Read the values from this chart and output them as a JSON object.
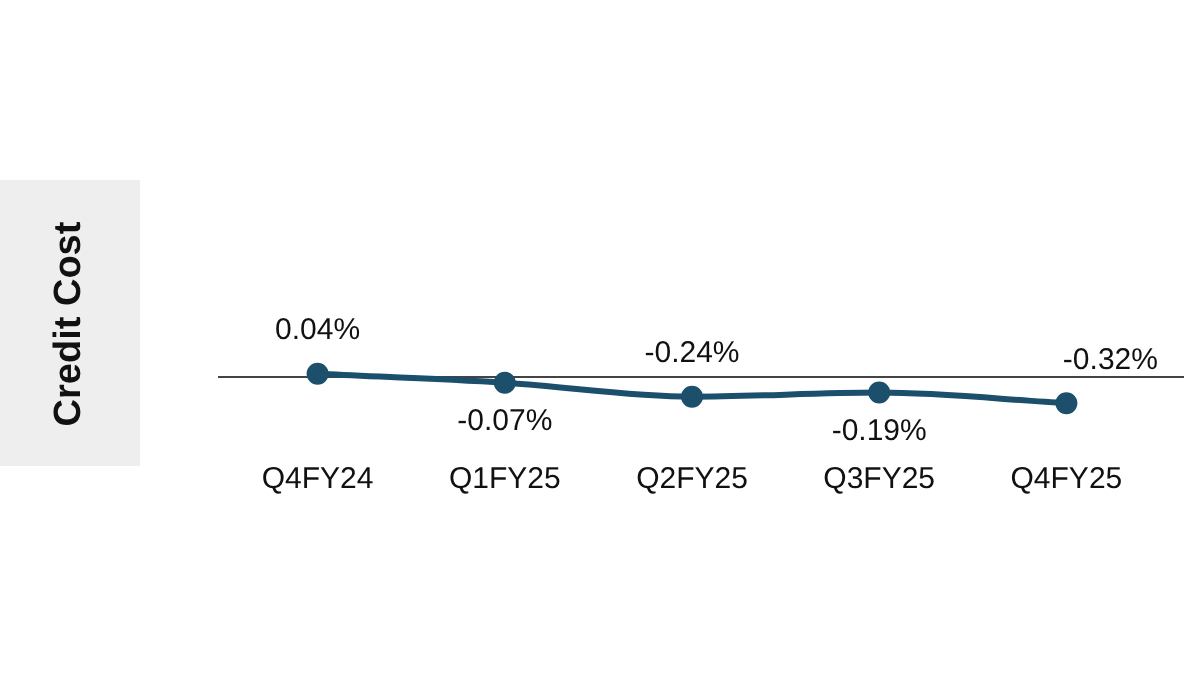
{
  "chart_data": {
    "type": "line",
    "ylabel": "Credit Cost",
    "categories": [
      "Q4FY24",
      "Q1FY25",
      "Q2FY25",
      "Q3FY25",
      "Q4FY25"
    ],
    "series": [
      {
        "color": "#1b4f6b",
        "values": [
          0.04,
          -0.07,
          -0.24,
          -0.19,
          -0.32
        ],
        "value_labels": [
          "0.04%",
          "-0.07%",
          "-0.24%",
          "-0.19%",
          "-0.32%"
        ]
      }
    ],
    "ref_lines": [
      {
        "axis": "y",
        "value": 0,
        "color": "#444444"
      }
    ],
    "marker": "circle",
    "line_style": "solid",
    "legend": false,
    "grid": false
  }
}
